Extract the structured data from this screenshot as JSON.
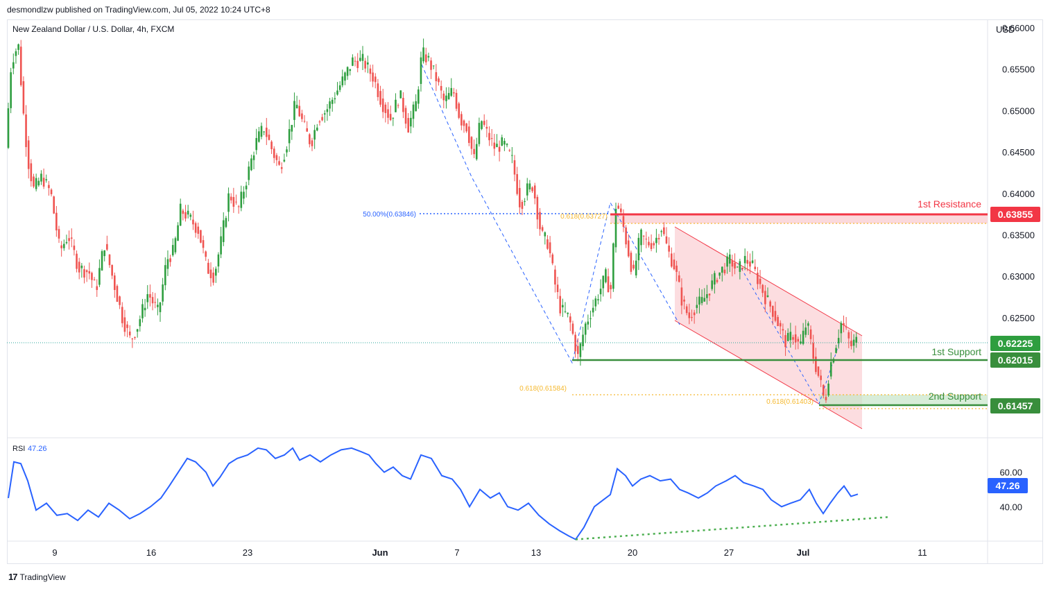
{
  "publisher_line": "desmondlzw published on TradingView.com, Jul 05, 2022 10:24 UTC+8",
  "footer": {
    "logo": "17",
    "brand": "TradingView"
  },
  "chart_data": {
    "type": "candlestick",
    "title": "New Zealand Dollar / U.S. Dollar, 4h, FXCM",
    "currency": "USD",
    "colors": {
      "up": "#26a69a",
      "up_body": "#2e9e3f",
      "down": "#ef5350",
      "resistance": "#f23645",
      "support": "#388e3c",
      "fib": "#f5b82e",
      "fib_blue": "#2962ff",
      "rsi": "#2962ff",
      "trend": "#4caf50",
      "channel_fill": "#fbd5d8"
    },
    "price_axis": {
      "ticks": [
        "0.66000",
        "0.65500",
        "0.65000",
        "0.64500",
        "0.64000",
        "0.63500",
        "0.63000",
        "0.62500"
      ],
      "range": [
        0.6105,
        0.661
      ]
    },
    "time_axis": {
      "ticks": [
        "9",
        "16",
        "23",
        "Jun",
        "7",
        "13",
        "20",
        "27",
        "Jul",
        "11"
      ]
    },
    "price_path": [
      [
        0,
        0.6455
      ],
      [
        8,
        0.656
      ],
      [
        18,
        0.658
      ],
      [
        25,
        0.65
      ],
      [
        32,
        0.644
      ],
      [
        40,
        0.6405
      ],
      [
        52,
        0.642
      ],
      [
        65,
        0.64
      ],
      [
        78,
        0.633
      ],
      [
        90,
        0.635
      ],
      [
        105,
        0.631
      ],
      [
        120,
        0.6305
      ],
      [
        130,
        0.6283
      ],
      [
        142,
        0.634
      ],
      [
        155,
        0.6295
      ],
      [
        168,
        0.625
      ],
      [
        180,
        0.6222
      ],
      [
        190,
        0.624
      ],
      [
        205,
        0.628
      ],
      [
        220,
        0.6255
      ],
      [
        232,
        0.632
      ],
      [
        242,
        0.633
      ],
      [
        252,
        0.638
      ],
      [
        265,
        0.637
      ],
      [
        278,
        0.6355
      ],
      [
        290,
        0.631
      ],
      [
        300,
        0.63
      ],
      [
        310,
        0.634
      ],
      [
        322,
        0.64
      ],
      [
        335,
        0.638
      ],
      [
        348,
        0.642
      ],
      [
        360,
        0.646
      ],
      [
        372,
        0.648
      ],
      [
        385,
        0.645
      ],
      [
        395,
        0.643
      ],
      [
        405,
        0.646
      ],
      [
        418,
        0.651
      ],
      [
        430,
        0.648
      ],
      [
        440,
        0.646
      ],
      [
        450,
        0.649
      ],
      [
        462,
        0.65
      ],
      [
        475,
        0.652
      ],
      [
        488,
        0.654
      ],
      [
        500,
        0.656
      ],
      [
        515,
        0.656
      ],
      [
        530,
        0.654
      ],
      [
        542,
        0.651
      ],
      [
        555,
        0.649
      ],
      [
        568,
        0.652
      ],
      [
        580,
        0.648
      ],
      [
        592,
        0.651
      ],
      [
        600,
        0.657
      ],
      [
        610,
        0.656
      ],
      [
        620,
        0.654
      ],
      [
        632,
        0.651
      ],
      [
        645,
        0.6525
      ],
      [
        655,
        0.649
      ],
      [
        665,
        0.648
      ],
      [
        675,
        0.644
      ],
      [
        685,
        0.649
      ],
      [
        695,
        0.647
      ],
      [
        705,
        0.6455
      ],
      [
        718,
        0.646
      ],
      [
        730,
        0.644
      ],
      [
        742,
        0.6385
      ],
      [
        752,
        0.6405
      ],
      [
        760,
        0.641
      ],
      [
        772,
        0.635
      ],
      [
        782,
        0.634
      ],
      [
        792,
        0.629
      ],
      [
        800,
        0.626
      ],
      [
        812,
        0.625
      ],
      [
        825,
        0.6202
      ],
      [
        835,
        0.624
      ],
      [
        845,
        0.626
      ],
      [
        855,
        0.628
      ],
      [
        865,
        0.63
      ],
      [
        872,
        0.628
      ],
      [
        880,
        0.639
      ],
      [
        888,
        0.637
      ],
      [
        895,
        0.634
      ],
      [
        905,
        0.63
      ],
      [
        915,
        0.635
      ],
      [
        925,
        0.634
      ],
      [
        935,
        0.634
      ],
      [
        945,
        0.636
      ],
      [
        955,
        0.633
      ],
      [
        965,
        0.631
      ],
      [
        975,
        0.627
      ],
      [
        985,
        0.625
      ],
      [
        995,
        0.6265
      ],
      [
        1005,
        0.627
      ],
      [
        1015,
        0.6285
      ],
      [
        1025,
        0.63
      ],
      [
        1035,
        0.631
      ],
      [
        1045,
        0.632
      ],
      [
        1055,
        0.6305
      ],
      [
        1065,
        0.632
      ],
      [
        1075,
        0.6315
      ],
      [
        1085,
        0.6295
      ],
      [
        1095,
        0.6275
      ],
      [
        1105,
        0.626
      ],
      [
        1115,
        0.624
      ],
      [
        1125,
        0.622
      ],
      [
        1135,
        0.623
      ],
      [
        1145,
        0.6215
      ],
      [
        1155,
        0.6245
      ],
      [
        1165,
        0.62
      ],
      [
        1175,
        0.617
      ],
      [
        1181,
        0.6146
      ],
      [
        1188,
        0.619
      ],
      [
        1196,
        0.6215
      ],
      [
        1205,
        0.6245
      ],
      [
        1212,
        0.6232
      ],
      [
        1218,
        0.6215
      ],
      [
        1225,
        0.6222
      ]
    ],
    "annotations": {
      "first_resistance": {
        "label": "1st Resistance",
        "price_label": "0.63855",
        "price": 0.63855,
        "zone_bottom": 0.63727
      },
      "first_support": {
        "label": "1st Support",
        "price_label": "0.62015",
        "price": 0.62015
      },
      "second_support": {
        "label": "2nd Support",
        "price_label": "0.61457",
        "price": 0.61457,
        "zone_top": 0.61584
      },
      "current_price": {
        "price_label": "0.62225",
        "price": 0.62225
      },
      "fib_blue_label": "50.00%(0.63846)",
      "fib_a_label": "0.618(0.63727)",
      "fib_b_label": "0.618(0.61584)",
      "fib_c_label": "0.618(0.61403)"
    },
    "rsi": {
      "label": "RSI",
      "value_label": "47.26",
      "ticks": [
        "60.00",
        "40.00"
      ],
      "range": [
        20,
        80
      ],
      "path": [
        [
          0,
          45
        ],
        [
          8,
          66
        ],
        [
          18,
          65
        ],
        [
          28,
          55
        ],
        [
          40,
          38
        ],
        [
          55,
          42
        ],
        [
          70,
          35
        ],
        [
          85,
          36
        ],
        [
          100,
          32
        ],
        [
          115,
          38
        ],
        [
          130,
          34
        ],
        [
          145,
          42
        ],
        [
          160,
          38
        ],
        [
          175,
          33
        ],
        [
          190,
          36
        ],
        [
          205,
          40
        ],
        [
          220,
          45
        ],
        [
          232,
          52
        ],
        [
          245,
          60
        ],
        [
          258,
          68
        ],
        [
          270,
          66
        ],
        [
          285,
          60
        ],
        [
          295,
          52
        ],
        [
          305,
          57
        ],
        [
          318,
          65
        ],
        [
          330,
          68
        ],
        [
          345,
          70
        ],
        [
          360,
          74
        ],
        [
          372,
          73
        ],
        [
          385,
          68
        ],
        [
          398,
          70
        ],
        [
          410,
          74
        ],
        [
          420,
          67
        ],
        [
          435,
          70
        ],
        [
          450,
          66
        ],
        [
          465,
          70
        ],
        [
          480,
          73
        ],
        [
          495,
          74
        ],
        [
          508,
          72
        ],
        [
          520,
          70
        ],
        [
          530,
          65
        ],
        [
          542,
          60
        ],
        [
          555,
          63
        ],
        [
          568,
          58
        ],
        [
          580,
          56
        ],
        [
          595,
          70
        ],
        [
          610,
          68
        ],
        [
          625,
          58
        ],
        [
          640,
          56
        ],
        [
          652,
          50
        ],
        [
          665,
          40
        ],
        [
          680,
          50
        ],
        [
          695,
          45
        ],
        [
          708,
          48
        ],
        [
          720,
          40
        ],
        [
          735,
          38
        ],
        [
          750,
          42
        ],
        [
          765,
          35
        ],
        [
          780,
          30
        ],
        [
          795,
          26
        ],
        [
          808,
          23
        ],
        [
          818,
          21
        ],
        [
          830,
          28
        ],
        [
          845,
          40
        ],
        [
          858,
          44
        ],
        [
          868,
          47
        ],
        [
          878,
          62
        ],
        [
          890,
          58
        ],
        [
          900,
          52
        ],
        [
          912,
          56
        ],
        [
          925,
          58
        ],
        [
          940,
          55
        ],
        [
          955,
          56
        ],
        [
          968,
          50
        ],
        [
          980,
          48
        ],
        [
          995,
          45
        ],
        [
          1008,
          48
        ],
        [
          1020,
          52
        ],
        [
          1035,
          55
        ],
        [
          1048,
          58
        ],
        [
          1060,
          54
        ],
        [
          1075,
          52
        ],
        [
          1088,
          50
        ],
        [
          1100,
          44
        ],
        [
          1115,
          40
        ],
        [
          1128,
          42
        ],
        [
          1142,
          44
        ],
        [
          1155,
          50
        ],
        [
          1165,
          42
        ],
        [
          1175,
          36
        ],
        [
          1185,
          42
        ],
        [
          1196,
          48
        ],
        [
          1205,
          52
        ],
        [
          1215,
          46
        ],
        [
          1225,
          47.26
        ]
      ],
      "trend_line": [
        [
          818,
          21
        ],
        [
          1270,
          34
        ]
      ]
    }
  }
}
